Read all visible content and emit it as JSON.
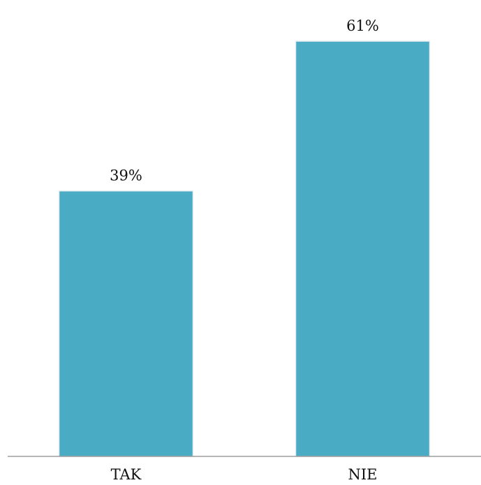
{
  "chart_data": {
    "type": "bar",
    "categories": [
      "TAK",
      "NIE"
    ],
    "values": [
      39,
      61
    ],
    "data_labels": [
      "39%",
      "61%"
    ],
    "value_unit": "%",
    "ylim": [
      0,
      61
    ],
    "grid": false,
    "legend": "none",
    "bar_color": "#4aabc5",
    "axis_color": "#8a8a8a",
    "text_color": "#111111"
  }
}
